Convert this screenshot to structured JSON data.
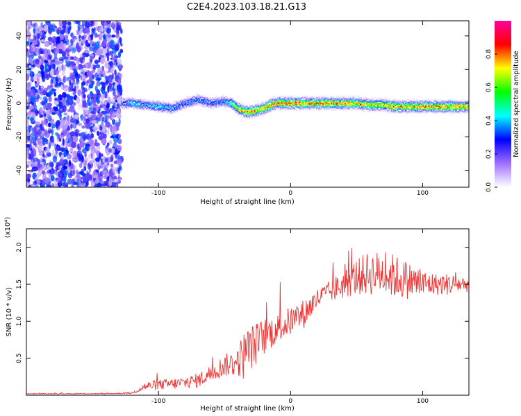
{
  "figure": {
    "title": "C2E4.2023.103.18.21.G13"
  },
  "chart_data": [
    {
      "type": "heatmap",
      "title": "C2E4.2023.103.18.21.G13",
      "xlabel": "Height of straight line (km)",
      "ylabel": "Frequency (Hz)",
      "xlim": [
        -200,
        135
      ],
      "ylim": [
        -50,
        49
      ],
      "xticks": [
        -100,
        0,
        100
      ],
      "xtick_labels": [
        "-100",
        "0",
        "100"
      ],
      "yticks": [
        -40,
        -20,
        0,
        20,
        40
      ],
      "ytick_labels": [
        "-40",
        "-20",
        "0",
        "20",
        "40"
      ],
      "colorbar": {
        "label": "Normalized spectral amplitude",
        "range": [
          0,
          1
        ],
        "ticks": [
          0.0,
          0.2,
          0.4,
          0.6,
          0.8
        ],
        "tick_labels": [
          "0.0",
          "0.2",
          "0.4",
          "0.6",
          "0.8"
        ],
        "colors": [
          "#ffffff",
          "#a070ff",
          "#0000ff",
          "#00ffff",
          "#00ff00",
          "#ffff00",
          "#ff0000",
          "#ff00a0"
        ]
      },
      "noise_region": {
        "x": [
          -200,
          -128
        ],
        "amplitude": 0.3
      },
      "signal_ridge": {
        "x": [
          -128,
          -120,
          -110,
          -100,
          -90,
          -80,
          -70,
          -60,
          -50,
          -45,
          -40,
          -35,
          -30,
          -25,
          -20,
          -15,
          -10,
          -5,
          0,
          10,
          20,
          30,
          40,
          50,
          60,
          70,
          80,
          90,
          100,
          110,
          120,
          135
        ],
        "y": [
          0,
          0,
          -1,
          -2,
          -3,
          0,
          2,
          0,
          1,
          0,
          -3,
          -5,
          -5,
          -4,
          -3,
          -1,
          0,
          0,
          0,
          0,
          0,
          0,
          0,
          0,
          -1,
          -1,
          -2,
          -2,
          -2,
          -2,
          -2,
          -2
        ],
        "amplitude": [
          0.3,
          0.45,
          0.4,
          0.45,
          0.4,
          0.35,
          0.4,
          0.35,
          0.4,
          0.5,
          0.7,
          0.85,
          0.9,
          0.75,
          0.8,
          0.85,
          0.9,
          0.9,
          0.9,
          0.9,
          0.85,
          0.85,
          0.85,
          0.8,
          0.75,
          0.75,
          0.8,
          0.8,
          0.85,
          0.85,
          0.85,
          0.85
        ]
      }
    },
    {
      "type": "line",
      "xlabel": "Height of straight line (km)",
      "ylabel": "SNR (10 * v/v)",
      "multiplier": "(x10⁴)",
      "xlim": [
        -200,
        135
      ],
      "ylim": [
        0,
        2.25
      ],
      "xticks": [
        -100,
        0,
        100
      ],
      "xtick_labels": [
        "-100",
        "0",
        "100"
      ],
      "yticks": [
        0.5,
        1.0,
        1.5,
        2.0
      ],
      "ytick_labels": [
        "0.5",
        "1.0",
        "1.5",
        "2.0"
      ],
      "series": [
        {
          "color": "#ee3333",
          "x": [
            -200,
            -180,
            -160,
            -140,
            -120,
            -110,
            -100,
            -90,
            -80,
            -70,
            -60,
            -50,
            -40,
            -35,
            -30,
            -25,
            -20,
            -10,
            0,
            10,
            20,
            30,
            40,
            50,
            60,
            70,
            80,
            90,
            100,
            110,
            120,
            135
          ],
          "y": [
            0.02,
            0.02,
            0.02,
            0.02,
            0.03,
            0.12,
            0.14,
            0.15,
            0.17,
            0.2,
            0.3,
            0.4,
            0.45,
            0.55,
            0.65,
            0.7,
            0.8,
            0.9,
            1.0,
            1.1,
            1.3,
            1.4,
            1.5,
            1.6,
            1.65,
            1.65,
            1.6,
            1.55,
            1.5,
            1.5,
            1.5,
            1.5
          ],
          "noise_amplitude": [
            0.005,
            0.005,
            0.005,
            0.005,
            0.01,
            0.06,
            0.07,
            0.08,
            0.08,
            0.1,
            0.12,
            0.15,
            0.2,
            0.35,
            0.3,
            0.3,
            0.25,
            0.2,
            0.2,
            0.2,
            0.15,
            0.15,
            0.2,
            0.25,
            0.3,
            0.3,
            0.3,
            0.25,
            0.2,
            0.15,
            0.15,
            0.1
          ]
        }
      ]
    }
  ]
}
